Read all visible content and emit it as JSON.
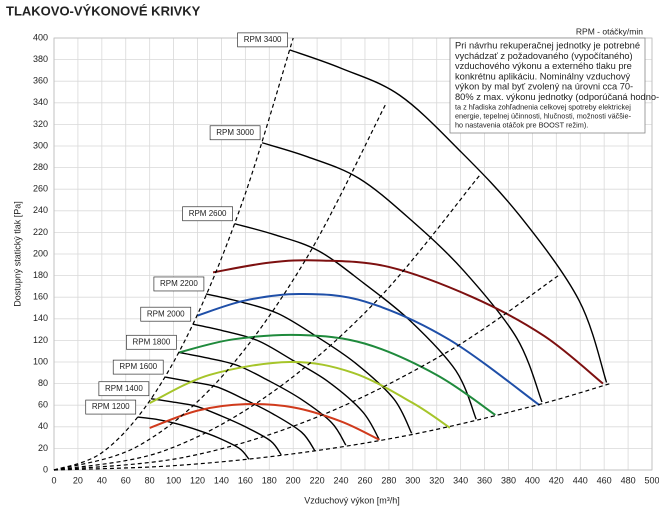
{
  "chart_data": {
    "type": "line",
    "title": "TLAKOVO-VÝKONOVÉ KRIVKY",
    "xlabel": "Vzduchový výkon [m³/h]",
    "ylabel": "Dostupný statický tlak [Pa]",
    "unit_note": "RPM - otáčky/min",
    "note": [
      "Pri návrhu rekuperačnej jednotky je potrebné",
      "vychádzať z požadovaného (vypočítaného)",
      "vzduchového výkonu a externého tlaku pre",
      "konkrétnu aplikáciu. Nominálny vzduchový",
      "výkon by mal byť zvolený na úrovni cca 70-",
      "80% z max. výkonu jednotky (odporúčaná hodno-",
      "ta z hľadiska zohľadnenia celkovej spotreby elektrickej",
      "energie, tepelnej účinnosti, hlučnosti, možnosti väčšie-",
      "ho nastavenia otáčok pre BOOST režim)."
    ],
    "xlim": [
      0,
      500
    ],
    "ylim": [
      0,
      400
    ],
    "xticks": [
      0,
      20,
      40,
      60,
      80,
      100,
      120,
      140,
      160,
      180,
      200,
      220,
      240,
      260,
      280,
      300,
      320,
      340,
      360,
      380,
      400,
      420,
      440,
      460,
      480,
      500
    ],
    "yticks": [
      0,
      20,
      40,
      60,
      80,
      100,
      120,
      140,
      160,
      180,
      200,
      220,
      240,
      260,
      280,
      300,
      320,
      340,
      360,
      380,
      400
    ],
    "grid": true,
    "series": [
      {
        "name": "RPM 3400",
        "color": "#000000",
        "x": [
          197,
          240,
          289,
          339,
          389,
          439,
          462
        ],
        "values": [
          389,
          372,
          347,
          296,
          236,
          157,
          81
        ]
      },
      {
        "name": "RPM 3000",
        "color": "#000000",
        "x": [
          174,
          212,
          255,
          299,
          343,
          387,
          408
        ],
        "values": [
          303,
          290,
          270,
          231,
          184,
          122,
          63
        ]
      },
      {
        "name": "RPM 2600",
        "color": "#000000",
        "x": [
          151,
          184,
          221,
          259,
          298,
          336,
          353
        ],
        "values": [
          228,
          218,
          203,
          173,
          138,
          92,
          47
        ]
      },
      {
        "name": "RPM 2200",
        "color": "#000000",
        "x": [
          127,
          155,
          187,
          219,
          252,
          284,
          299
        ],
        "values": [
          163,
          156,
          145,
          124,
          99,
          66,
          34
        ]
      },
      {
        "name": "RPM 2000",
        "color": "#000000",
        "x": [
          116,
          141,
          170,
          199,
          229,
          258,
          272
        ],
        "values": [
          135,
          129,
          120,
          102,
          82,
          54,
          28
        ]
      },
      {
        "name": "RPM 1800",
        "color": "#000000",
        "x": [
          104,
          127,
          153,
          179,
          206,
          232,
          244
        ],
        "values": [
          109,
          104,
          97,
          83,
          66,
          44,
          23
        ]
      },
      {
        "name": "RPM 1600",
        "color": "#000000",
        "x": [
          93,
          113,
          136,
          160,
          183,
          207,
          218
        ],
        "values": [
          86,
          82,
          77,
          65,
          52,
          35,
          18
        ]
      },
      {
        "name": "RPM 1400",
        "color": "#000000",
        "x": [
          81,
          99,
          119,
          140,
          160,
          181,
          190
        ],
        "values": [
          66,
          63,
          59,
          50,
          40,
          27,
          14
        ]
      },
      {
        "name": "RPM 1200",
        "color": "#000000",
        "x": [
          70,
          85,
          102,
          120,
          137,
          155,
          163
        ],
        "values": [
          49,
          47,
          43,
          37,
          30,
          20,
          10
        ]
      },
      {
        "color": "#d03a1c",
        "x": [
          80,
          120,
          160,
          200,
          240,
          272
        ],
        "values": [
          39,
          55,
          61,
          58,
          45,
          28
        ]
      },
      {
        "color": "#a6c52a",
        "x": [
          80,
          130,
          197,
          250,
          300,
          331
        ],
        "values": [
          62,
          88,
          100,
          90,
          62,
          39
        ]
      },
      {
        "color": "#1f8a3c",
        "x": [
          105,
          150,
          206,
          260,
          320,
          369
        ],
        "values": [
          109,
          121,
          125,
          117,
          88,
          51
        ]
      },
      {
        "color": "#1f4fa8",
        "x": [
          120,
          160,
          206,
          260,
          330,
          406
        ],
        "values": [
          143,
          157,
          163,
          156,
          121,
          60
        ]
      },
      {
        "color": "#7d1010",
        "x": [
          133,
          180,
          222,
          280,
          350,
          410,
          459
        ],
        "values": [
          183,
          192,
          194,
          188,
          160,
          124,
          80
        ]
      },
      {
        "color": "#000000",
        "dashed": true,
        "x": [
          0,
          40,
          80,
          120,
          160,
          200
        ],
        "values": [
          0,
          16,
          64,
          144,
          256,
          400
        ]
      },
      {
        "color": "#000000",
        "dashed": true,
        "x": [
          0,
          70,
          140,
          210,
          277
        ],
        "values": [
          0,
          22,
          86,
          194,
          338
        ]
      },
      {
        "color": "#000000",
        "dashed": true,
        "x": [
          0,
          90,
          180,
          270,
          356
        ],
        "values": [
          0,
          17,
          70,
          157,
          273
        ]
      },
      {
        "color": "#000000",
        "dashed": true,
        "x": [
          0,
          110,
          220,
          330,
          423
        ],
        "values": [
          0,
          12,
          49,
          110,
          181
        ]
      },
      {
        "color": "#000000",
        "dashed": true,
        "x": [
          0,
          100,
          200,
          300,
          400,
          465
        ],
        "values": [
          0,
          4,
          15,
          33,
          59,
          80
        ]
      }
    ]
  }
}
